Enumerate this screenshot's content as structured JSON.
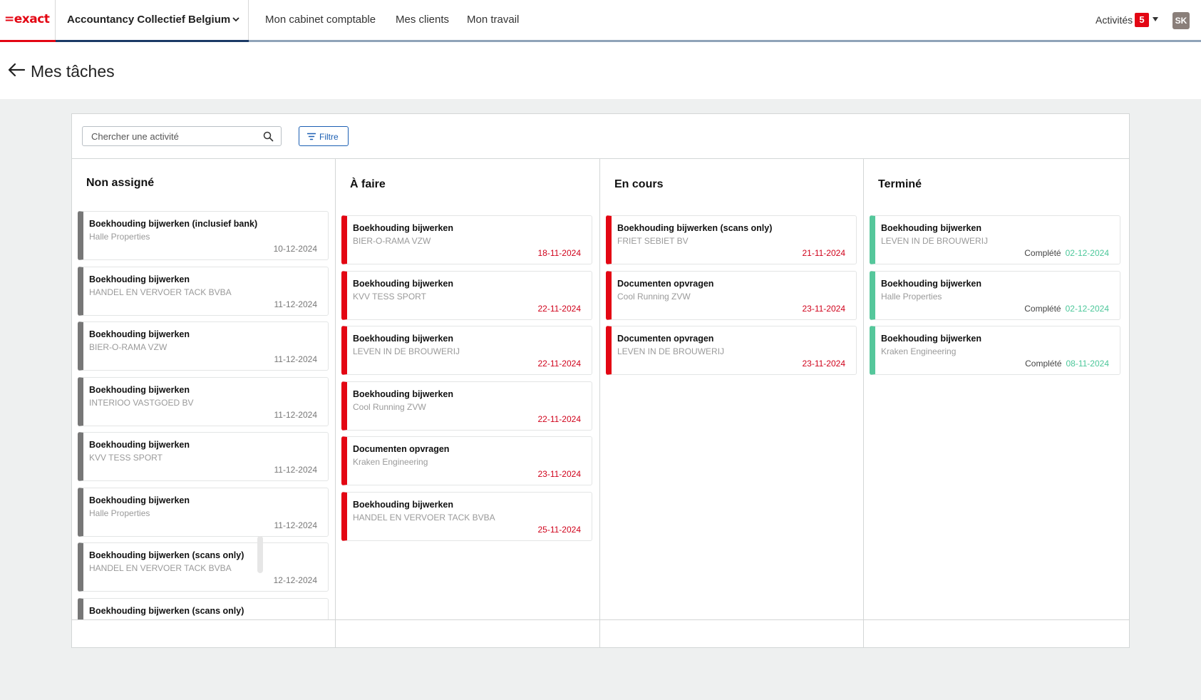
{
  "app": {
    "logo": "=exact",
    "company": "Accountancy Collectief Belgium",
    "nav": [
      "Mon cabinet comptable",
      "Mes clients",
      "Mon travail"
    ],
    "activities_label": "Activités",
    "activities_count": "5",
    "user_initials": "SK"
  },
  "page": {
    "title": "Mes tâches"
  },
  "toolbar": {
    "search_placeholder": "Chercher une activité",
    "filter_label": "Filtre"
  },
  "colors": {
    "unassigned": "#777777",
    "todo": "#e30613",
    "in_progress": "#e30613",
    "done": "#55c79b",
    "overdue_date": "#d0021b",
    "done_date": "#4cc79a"
  },
  "columns": [
    {
      "title": "Non assigné",
      "cards": [
        {
          "title": "Boekhouding bijwerken (inclusief bank)",
          "client": "Halle Properties",
          "date": "10-12-2024"
        },
        {
          "title": "Boekhouding bijwerken",
          "client": "HANDEL EN VERVOER TACK BVBA",
          "date": "11-12-2024"
        },
        {
          "title": "Boekhouding bijwerken",
          "client": "BIER-O-RAMA VZW",
          "date": "11-12-2024"
        },
        {
          "title": "Boekhouding bijwerken",
          "client": "INTERIOO VASTGOED BV",
          "date": "11-12-2024"
        },
        {
          "title": "Boekhouding bijwerken",
          "client": "KVV TESS SPORT",
          "date": "11-12-2024"
        },
        {
          "title": "Boekhouding bijwerken",
          "client": "Halle Properties",
          "date": "11-12-2024"
        },
        {
          "title": "Boekhouding bijwerken (scans only)",
          "client": "HANDEL EN VERVOER TACK BVBA",
          "date": "12-12-2024"
        },
        {
          "title": "Boekhouding bijwerken (scans only)",
          "client": "",
          "date": ""
        }
      ]
    },
    {
      "title": "À faire",
      "cards": [
        {
          "title": "Boekhouding bijwerken",
          "client": "BIER-O-RAMA VZW",
          "date": "18-11-2024"
        },
        {
          "title": "Boekhouding bijwerken",
          "client": "KVV TESS SPORT",
          "date": "22-11-2024"
        },
        {
          "title": "Boekhouding bijwerken",
          "client": "LEVEN IN DE BROUWERIJ",
          "date": "22-11-2024"
        },
        {
          "title": "Boekhouding bijwerken",
          "client": "Cool Running ZVW",
          "date": "22-11-2024"
        },
        {
          "title": "Documenten opvragen",
          "client": "Kraken Engineering",
          "date": "23-11-2024"
        },
        {
          "title": "Boekhouding bijwerken",
          "client": "HANDEL EN VERVOER TACK BVBA",
          "date": "25-11-2024"
        }
      ]
    },
    {
      "title": "En cours",
      "cards": [
        {
          "title": "Boekhouding bijwerken (scans only)",
          "client": "FRIET SEBIET BV",
          "date": "21-11-2024"
        },
        {
          "title": "Documenten opvragen",
          "client": "Cool Running ZVW",
          "date": "23-11-2024"
        },
        {
          "title": "Documenten opvragen",
          "client": "LEVEN IN DE BROUWERIJ",
          "date": "23-11-2024"
        }
      ]
    },
    {
      "title": "Terminé",
      "cards": [
        {
          "title": "Boekhouding bijwerken",
          "client": "LEVEN IN DE BROUWERIJ",
          "status": "Complété",
          "date": "02-12-2024"
        },
        {
          "title": "Boekhouding bijwerken",
          "client": "Halle Properties",
          "status": "Complété",
          "date": "02-12-2024"
        },
        {
          "title": "Boekhouding bijwerken",
          "client": "Kraken Engineering",
          "status": "Complété",
          "date": "08-11-2024"
        }
      ]
    }
  ]
}
